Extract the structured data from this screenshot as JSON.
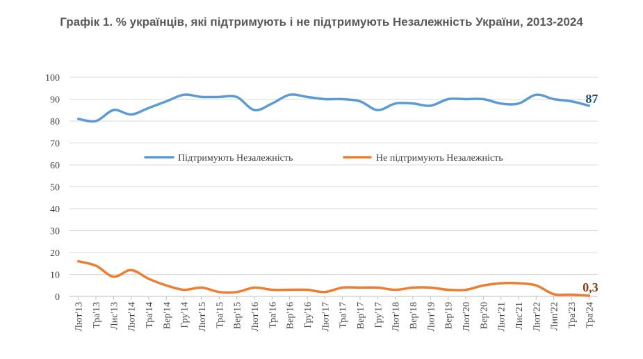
{
  "title": "Графік 1. % українців, які підтримують і не підтримують Незалежність України, 2013-2024",
  "chart_data": {
    "type": "line",
    "ylim": [
      0,
      100
    ],
    "yticks": [
      0,
      10,
      20,
      30,
      40,
      50,
      60,
      70,
      80,
      90,
      100
    ],
    "grid": true,
    "legend_position": "center",
    "categories": [
      "Лют'13",
      "Тра'13",
      "Лис'13",
      "Лют'14",
      "Тра'14",
      "Вер'14",
      "Гру'14",
      "Лют'15",
      "Тра'15",
      "Вер'15",
      "Лют'16",
      "Тра'16",
      "Вер'16",
      "Гру'16",
      "Лют'17",
      "Тра'17",
      "Вер'17",
      "Гру'17",
      "Лют'18",
      "Вер'18",
      "Лют'19",
      "Вер'19",
      "Лют'20",
      "Вер'20",
      "Лют'21",
      "Лис'21",
      "Лют'22",
      "Лип'22",
      "Тра'23",
      "Тра'24"
    ],
    "series": [
      {
        "name": "Підтримують Незалежність",
        "color": "#5b9bd5",
        "values": [
          81,
          80,
          85,
          83,
          86,
          89,
          92,
          91,
          91,
          91,
          85,
          88,
          92,
          91,
          90,
          90,
          89,
          85,
          88,
          88,
          87,
          90,
          90,
          90,
          88,
          88,
          92,
          90,
          89,
          87
        ]
      },
      {
        "name": "Не підтримують Незалежність",
        "color": "#ed7d31",
        "values": [
          16,
          14,
          9,
          12,
          8,
          5,
          3,
          4,
          2,
          2,
          4,
          3,
          3,
          3,
          2,
          4,
          4,
          4,
          3,
          4,
          4,
          3,
          3,
          5,
          6,
          6,
          5,
          1,
          0.8,
          0.3
        ]
      }
    ],
    "end_labels": {
      "support": "87",
      "oppose": "0,3"
    }
  }
}
